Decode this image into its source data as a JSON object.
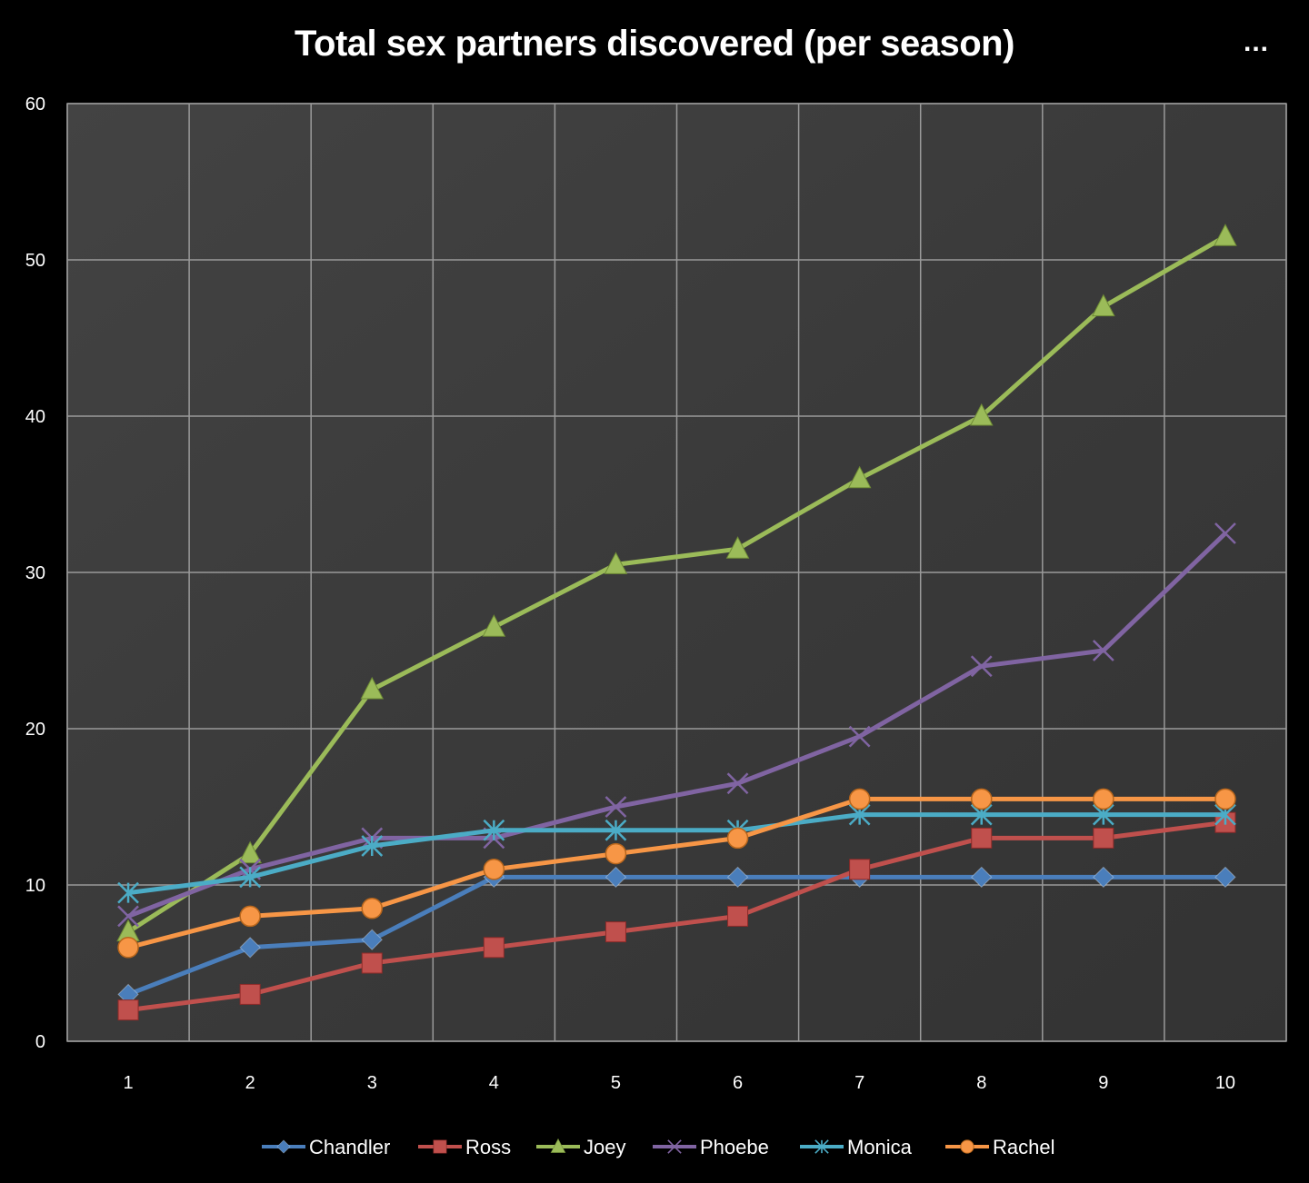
{
  "header": {
    "more_icon": "ellipsis-icon",
    "more_label": "..."
  },
  "chart_data": {
    "type": "line",
    "title": "Total sex partners discovered (per season)",
    "xlabel": "",
    "ylabel": "",
    "x": [
      1,
      2,
      3,
      4,
      5,
      6,
      7,
      8,
      9,
      10
    ],
    "ylim": [
      0,
      60
    ],
    "yticks": [
      0,
      10,
      20,
      30,
      40,
      50,
      60
    ],
    "grid": true,
    "legend": "bottom",
    "series": [
      {
        "name": "Chandler",
        "color": "#4a7ebb",
        "marker": "diamond",
        "values": [
          3,
          6,
          6.5,
          10.5,
          10.5,
          10.5,
          10.5,
          10.5,
          10.5,
          10.5
        ]
      },
      {
        "name": "Ross",
        "color": "#c0504d",
        "marker": "square",
        "values": [
          2,
          3,
          5,
          6,
          7,
          8,
          11,
          13,
          13,
          14
        ]
      },
      {
        "name": "Joey",
        "color": "#9bbb59",
        "marker": "triangle",
        "values": [
          7,
          12,
          22.5,
          26.5,
          30.5,
          31.5,
          36,
          40,
          47,
          51.5
        ]
      },
      {
        "name": "Phoebe",
        "color": "#8064a2",
        "marker": "x",
        "values": [
          8,
          11,
          13,
          13,
          15,
          16.5,
          19.5,
          24,
          25,
          32.5
        ]
      },
      {
        "name": "Monica",
        "color": "#4bacc6",
        "marker": "asterisk",
        "values": [
          9.5,
          10.5,
          12.5,
          13.5,
          13.5,
          13.5,
          14.5,
          14.5,
          14.5,
          14.5
        ]
      },
      {
        "name": "Rachel",
        "color": "#f79646",
        "marker": "circle",
        "values": [
          6,
          8,
          8.5,
          11,
          12,
          13,
          15.5,
          15.5,
          15.5,
          15.5
        ]
      }
    ]
  }
}
